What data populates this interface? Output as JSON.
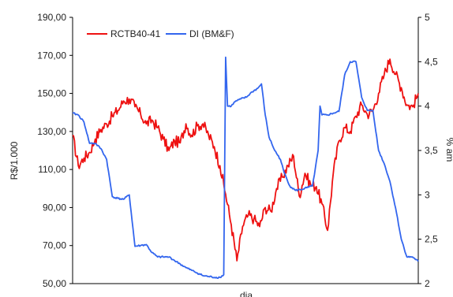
{
  "chart_data": {
    "type": "line",
    "title": "",
    "xlabel": "dia",
    "ylabel_left": "R$/1.000",
    "ylabel_right": "% am",
    "ylim_left": [
      50,
      190
    ],
    "ylim_right": [
      2,
      5
    ],
    "yticks_left": [
      "50,00",
      "70,00",
      "90,00",
      "110,00",
      "130,00",
      "150,00",
      "170,00",
      "190,00"
    ],
    "yticks_right": [
      "2",
      "2,5",
      "3",
      "3,5",
      "4",
      "4,5",
      "5"
    ],
    "yticks_left_values": [
      50,
      70,
      90,
      110,
      130,
      150,
      170,
      190
    ],
    "yticks_right_values": [
      2,
      2.5,
      3,
      3.5,
      4,
      4.5,
      5
    ],
    "x_count": 170,
    "legend_position": "top-left",
    "grid": false,
    "series": [
      {
        "name": "RCTB40-41",
        "axis": "left",
        "color": "#ee1111",
        "points": [
          [
            0,
            128
          ],
          [
            3,
            112
          ],
          [
            6,
            116
          ],
          [
            9,
            119
          ],
          [
            12,
            126
          ],
          [
            15,
            131
          ],
          [
            18,
            134
          ],
          [
            21,
            138
          ],
          [
            24,
            141
          ],
          [
            27,
            146
          ],
          [
            30,
            147
          ],
          [
            33,
            143
          ],
          [
            36,
            139
          ],
          [
            39,
            134
          ],
          [
            42,
            136
          ],
          [
            45,
            132
          ],
          [
            48,
            126
          ],
          [
            51,
            120
          ],
          [
            54,
            125
          ],
          [
            57,
            124
          ],
          [
            60,
            134
          ],
          [
            63,
            128
          ],
          [
            66,
            133
          ],
          [
            69,
            134
          ],
          [
            72,
            128
          ],
          [
            75,
            122
          ],
          [
            78,
            112
          ],
          [
            81,
            97
          ],
          [
            84,
            81
          ],
          [
            87,
            62
          ],
          [
            90,
            80
          ],
          [
            93,
            86
          ],
          [
            96,
            84
          ],
          [
            99,
            80
          ],
          [
            102,
            90
          ],
          [
            105,
            88
          ],
          [
            108,
            100
          ],
          [
            111,
            106
          ],
          [
            114,
            112
          ],
          [
            117,
            117
          ],
          [
            120,
            96
          ],
          [
            123,
            108
          ],
          [
            126,
            102
          ],
          [
            129,
            101
          ],
          [
            132,
            92
          ],
          [
            135,
            78
          ],
          [
            138,
            108
          ],
          [
            141,
            125
          ],
          [
            144,
            132
          ],
          [
            147,
            130
          ],
          [
            150,
            138
          ],
          [
            153,
            144
          ],
          [
            156,
            139
          ],
          [
            159,
            141
          ],
          [
            162,
            150
          ],
          [
            165,
            160
          ],
          [
            168,
            168
          ],
          [
            171,
            160
          ],
          [
            174,
            153
          ],
          [
            177,
            144
          ],
          [
            180,
            143
          ],
          [
            183,
            150
          ]
        ]
      },
      {
        "name": "DI (BM&F)",
        "axis": "right",
        "color": "#3366ee",
        "points": [
          [
            0,
            3.92
          ],
          [
            3,
            3.9
          ],
          [
            6,
            3.82
          ],
          [
            9,
            3.58
          ],
          [
            12,
            3.58
          ],
          [
            15,
            3.52
          ],
          [
            18,
            3.4
          ],
          [
            21,
            2.98
          ],
          [
            24,
            2.96
          ],
          [
            27,
            2.95
          ],
          [
            30,
            3.0
          ],
          [
            33,
            2.42
          ],
          [
            36,
            2.43
          ],
          [
            39,
            2.44
          ],
          [
            42,
            2.35
          ],
          [
            45,
            2.3
          ],
          [
            48,
            2.3
          ],
          [
            51,
            2.3
          ],
          [
            54,
            2.26
          ],
          [
            57,
            2.22
          ],
          [
            60,
            2.18
          ],
          [
            63,
            2.15
          ],
          [
            66,
            2.12
          ],
          [
            69,
            2.09
          ],
          [
            72,
            2.08
          ],
          [
            75,
            2.07
          ],
          [
            78,
            2.07
          ],
          [
            80,
            2.1
          ],
          [
            81,
            4.55
          ],
          [
            82,
            4.0
          ],
          [
            84,
            4.0
          ],
          [
            86,
            4.05
          ],
          [
            89,
            4.08
          ],
          [
            92,
            4.1
          ],
          [
            95,
            4.16
          ],
          [
            98,
            4.2
          ],
          [
            100,
            4.25
          ],
          [
            102,
            3.9
          ],
          [
            104,
            3.65
          ],
          [
            107,
            3.5
          ],
          [
            110,
            3.4
          ],
          [
            112,
            3.25
          ],
          [
            115,
            3.1
          ],
          [
            118,
            3.05
          ],
          [
            121,
            3.06
          ],
          [
            124,
            3.08
          ],
          [
            127,
            3.1
          ],
          [
            130,
            3.5
          ],
          [
            131,
            4.0
          ],
          [
            132,
            3.9
          ],
          [
            135,
            3.9
          ],
          [
            138,
            3.92
          ],
          [
            141,
            3.94
          ],
          [
            144,
            4.35
          ],
          [
            147,
            4.5
          ],
          [
            150,
            4.5
          ],
          [
            153,
            4.1
          ],
          [
            156,
            3.95
          ],
          [
            159,
            3.95
          ],
          [
            162,
            3.5
          ],
          [
            165,
            3.35
          ],
          [
            168,
            3.15
          ],
          [
            171,
            2.85
          ],
          [
            174,
            2.5
          ],
          [
            177,
            2.3
          ],
          [
            180,
            2.3
          ],
          [
            183,
            2.25
          ]
        ]
      }
    ]
  }
}
